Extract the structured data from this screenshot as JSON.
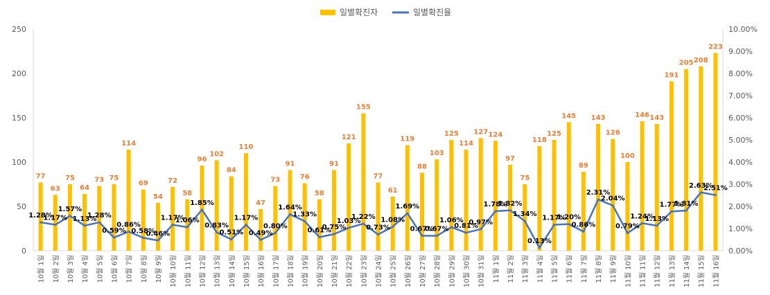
{
  "chart_data": {
    "type": "bar",
    "categories": [
      "10월 1일",
      "10월 2일",
      "10월 3일",
      "10월 4일",
      "10월 5일",
      "10월 6일",
      "10월 7일",
      "10월 8일",
      "10월 9일",
      "10월 10일",
      "10월 11일",
      "10월 12일",
      "10월 13일",
      "10월 14일",
      "10월 15일",
      "10월 16일",
      "10월 17일",
      "10월 18일",
      "10월 19일",
      "10월 20일",
      "10월 21일",
      "10월 22일",
      "10월 23일",
      "10월 24일",
      "10월 25일",
      "10월 26일",
      "10월 27일",
      "10월 28일",
      "10월 29일",
      "10월 30일",
      "10월 31일",
      "11월 1일",
      "11월 2일",
      "11월 3일",
      "11월 4일",
      "11월 5일",
      "11월 6일",
      "11월 7일",
      "11월 8일",
      "11월 9일",
      "11월 10일",
      "11월 11일",
      "11월 12일",
      "11월 13일",
      "11월 14일",
      "11월 15일",
      "11월 16일"
    ],
    "series": [
      {
        "name": "일별확진자",
        "type": "bar",
        "axis": "left",
        "color": "#FFC000",
        "values": [
          77,
          63,
          75,
          64,
          73,
          75,
          114,
          69,
          54,
          72,
          58,
          96,
          102,
          84,
          110,
          47,
          73,
          91,
          76,
          58,
          91,
          121,
          155,
          77,
          61,
          119,
          88,
          103,
          125,
          114,
          127,
          124,
          97,
          75,
          118,
          125,
          145,
          89,
          143,
          126,
          100,
          146,
          143,
          191,
          205,
          208,
          223
        ]
      },
      {
        "name": "일별확진율",
        "type": "line",
        "axis": "right",
        "color": "#4472C4",
        "values": [
          1.28,
          1.17,
          1.57,
          1.13,
          1.28,
          0.59,
          0.86,
          0.58,
          0.46,
          1.17,
          1.06,
          1.85,
          0.83,
          0.51,
          1.17,
          0.49,
          0.8,
          1.64,
          1.33,
          0.61,
          0.75,
          1.03,
          1.22,
          0.73,
          1.08,
          1.69,
          0.67,
          0.67,
          1.06,
          0.81,
          0.97,
          1.78,
          1.82,
          1.34,
          0.13,
          1.17,
          1.2,
          0.86,
          2.31,
          2.04,
          0.79,
          1.24,
          1.13,
          1.77,
          1.81,
          2.63,
          2.51
        ],
        "labels": [
          "1.28%",
          "1.17%",
          "1.57%",
          "1.13%",
          "1.28%",
          "0.59%",
          "0.86%",
          "0.58%",
          "0.46%",
          "1.17%",
          "1.06%",
          "1.85%",
          "0.83%",
          "0.51%",
          "1.17%",
          "0.49%",
          "0.80%",
          "1.64%",
          "1.33%",
          "0.61%",
          "0.75%",
          "1.03%",
          "1.22%",
          "0.73%",
          "1.08%",
          "1.69%",
          "0.67%",
          "0.67%",
          "1.06%",
          "0.81%",
          "0.97%",
          "1.78%",
          "1.82%",
          "1.34%",
          "0.13%",
          "1.17%",
          "1.20%",
          "0.86%",
          "2.31%",
          "2.04%",
          "0.79%",
          "1.24%",
          "1.13%",
          "1.77%",
          "1.81%",
          "2.63%",
          "2.51%"
        ]
      }
    ],
    "y_left": {
      "min": 0,
      "max": 250,
      "ticks": [
        "0",
        "50",
        "100",
        "150",
        "200",
        "250"
      ],
      "values": [
        0,
        50,
        100,
        150,
        200,
        250
      ]
    },
    "y_right": {
      "min": 0,
      "max": 10,
      "ticks": [
        "0.00%",
        "1.00%",
        "2.00%",
        "3.00%",
        "4.00%",
        "5.00%",
        "6.00%",
        "7.00%",
        "8.00%",
        "9.00%",
        "10.00%"
      ],
      "values": [
        0,
        1,
        2,
        3,
        4,
        5,
        6,
        7,
        8,
        9,
        10
      ]
    },
    "grid": false,
    "legend_position": "top-center"
  }
}
